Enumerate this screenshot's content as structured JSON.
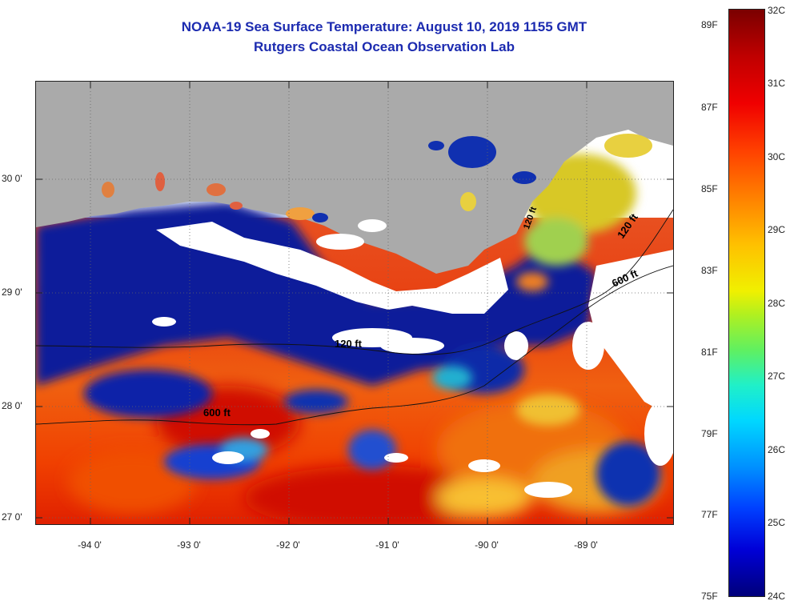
{
  "title": {
    "line1": "NOAA-19 Sea Surface Temperature:  August 10, 2019 1155 GMT",
    "line2": "Rutgers Coastal Ocean Observation Lab"
  },
  "map": {
    "land_color": "#aaaaaa",
    "cloud_color": "#ffffff",
    "lat_labels": [
      "30 0'",
      "29 0'",
      "28 0'",
      "27 0'"
    ],
    "lon_labels": [
      "-94 0'",
      "-93 0'",
      "-92 0'",
      "-91 0'",
      "-90 0'",
      "-89 0'"
    ],
    "contour_labels": [
      "600 ft",
      "120 ft",
      "600 ft",
      "120 ft",
      "120 ft"
    ]
  },
  "colorbar": {
    "celsius": [
      "32C",
      "31C",
      "30C",
      "29C",
      "28C",
      "27C",
      "26C",
      "25C",
      "24C"
    ],
    "fahrenheit": [
      "89F",
      "87F",
      "85F",
      "83F",
      "81F",
      "79F",
      "77F",
      "75F"
    ],
    "range_c": [
      24,
      32
    ]
  }
}
